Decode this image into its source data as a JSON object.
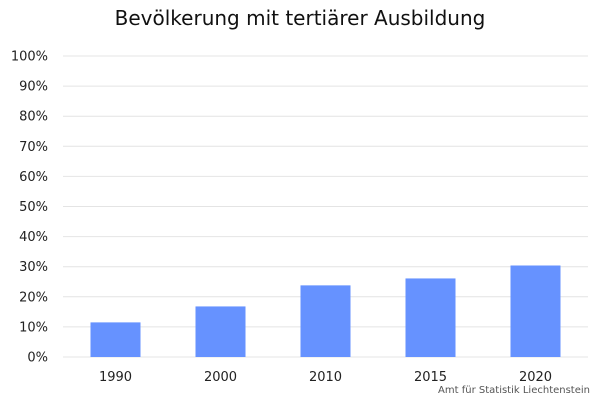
{
  "chart_data": {
    "type": "bar",
    "title": "Bevölkerung mit tertiärer Ausbildung",
    "categories": [
      "1990",
      "2000",
      "2010",
      "2015",
      "2020"
    ],
    "values": [
      11.5,
      16.8,
      23.8,
      26.1,
      30.4
    ],
    "unit": "%",
    "ylim": [
      0,
      100
    ],
    "yticks": [
      "0%",
      "10%",
      "20%",
      "30%",
      "40%",
      "50%",
      "60%",
      "70%",
      "80%",
      "90%",
      "100%"
    ],
    "grid": true,
    "legend": "none",
    "bar_color": "#6692ff",
    "grid_color": "#e4e4e4"
  },
  "source": "Amt für Statistik Liechtenstein"
}
